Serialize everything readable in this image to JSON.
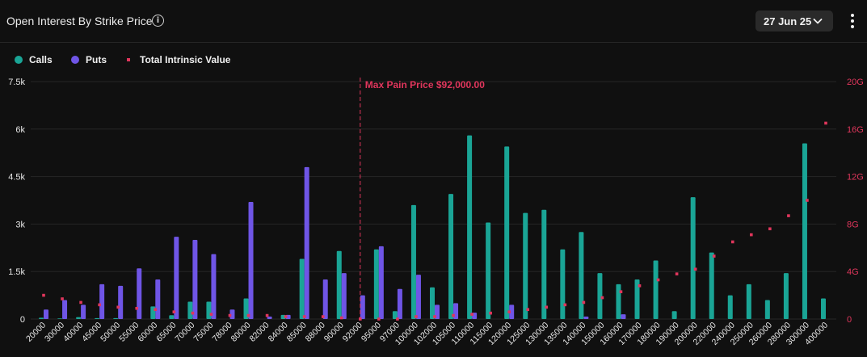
{
  "header": {
    "title": "Open Interest By Strike Price",
    "date_label": "27 Jun 25"
  },
  "icons": {
    "info": "info-icon",
    "dropdown": "chevron-down-icon",
    "menu": "kebab-menu-icon"
  },
  "colors": {
    "calls": "#1aa596",
    "puts": "#6f55e6",
    "intrinsic": "#e0365c",
    "max_pain": "#e0365c"
  },
  "legend": {
    "calls": "Calls",
    "puts": "Puts",
    "intrinsic": "Total Intrinsic Value"
  },
  "chart_data": {
    "type": "bar",
    "title": "Open Interest By Strike Price",
    "categories": [
      "20000",
      "30000",
      "40000",
      "45000",
      "50000",
      "55000",
      "60000",
      "65000",
      "70000",
      "75000",
      "78000",
      "80000",
      "82000",
      "84000",
      "85000",
      "88000",
      "90000",
      "92000",
      "95000",
      "97000",
      "100000",
      "102000",
      "105000",
      "110000",
      "115000",
      "120000",
      "125000",
      "130000",
      "135000",
      "140000",
      "150000",
      "160000",
      "170000",
      "180000",
      "190000",
      "200000",
      "220000",
      "240000",
      "250000",
      "260000",
      "280000",
      "300000",
      "400000"
    ],
    "y_left": {
      "ticks": [
        "0",
        "1.5k",
        "3k",
        "4.5k",
        "6k",
        "7.5k"
      ],
      "ylim": [
        0,
        7500
      ]
    },
    "y_right": {
      "ticks": [
        "0",
        "4G",
        "8G",
        "12G",
        "16G",
        "20G"
      ],
      "ylim": [
        0,
        20
      ]
    },
    "series": [
      {
        "name": "Calls",
        "axis": "left",
        "values": [
          40,
          20,
          60,
          30,
          30,
          0,
          400,
          120,
          550,
          550,
          0,
          650,
          0,
          130,
          1900,
          0,
          2150,
          0,
          2200,
          250,
          3600,
          1000,
          3950,
          5800,
          3050,
          5450,
          3350,
          3450,
          2200,
          2750,
          1450,
          1100,
          1250,
          1850,
          250,
          3850,
          2100,
          750,
          1100,
          600,
          1450,
          5550,
          650
        ]
      },
      {
        "name": "Puts",
        "axis": "left",
        "values": [
          300,
          600,
          450,
          1100,
          1050,
          1600,
          1250,
          2600,
          2500,
          2050,
          300,
          3700,
          80,
          130,
          4800,
          1250,
          1450,
          750,
          2300,
          950,
          1400,
          450,
          500,
          200,
          0,
          450,
          0,
          0,
          0,
          80,
          0,
          150,
          0,
          0,
          0,
          0,
          0,
          0,
          0,
          0,
          0,
          0,
          0
        ]
      },
      {
        "name": "Total Intrinsic Value",
        "axis": "right",
        "type": "scatter",
        "values": [
          2.0,
          1.7,
          1.4,
          1.2,
          1.0,
          0.9,
          0.8,
          0.6,
          0.5,
          0.4,
          0.3,
          0.3,
          0.3,
          0.2,
          0.2,
          0.2,
          0.1,
          0.0,
          0.0,
          0.0,
          0.2,
          0.2,
          0.3,
          0.4,
          0.5,
          0.6,
          0.8,
          1.0,
          1.2,
          1.4,
          1.8,
          2.3,
          2.8,
          3.3,
          3.8,
          4.2,
          5.3,
          6.5,
          7.1,
          7.6,
          8.7,
          10.0,
          16.5
        ]
      }
    ],
    "annotations": [
      {
        "category": "92000",
        "label": "Max Pain Price $92,000.00"
      }
    ],
    "grid": true,
    "legend_position": "top-left"
  }
}
